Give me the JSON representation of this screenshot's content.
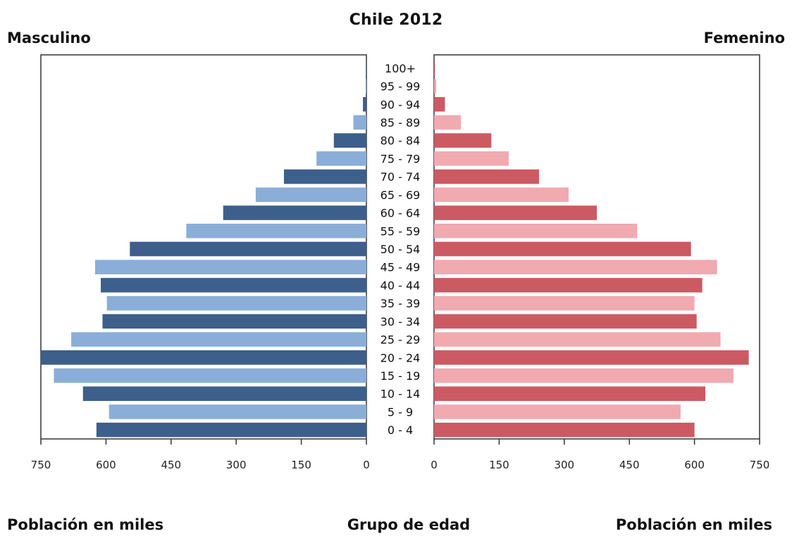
{
  "chart_data": {
    "type": "bar",
    "title": "Chile 2012",
    "left_label": "Masculino",
    "right_label": "Femenino",
    "xlabel_left": "Población en miles",
    "xlabel_center": "Grupo de edad",
    "xlabel_right": "Población en miles",
    "categories": [
      "0 - 4",
      "5 - 9",
      "10 - 14",
      "15 - 19",
      "20 - 24",
      "25 - 29",
      "30 - 34",
      "35 - 39",
      "40 - 44",
      "45 - 49",
      "50 - 54",
      "55 - 59",
      "60 - 64",
      "65 - 69",
      "70 - 74",
      "75 - 79",
      "80 - 84",
      "85 - 89",
      "90 - 94",
      "95 - 99",
      "100+"
    ],
    "series": [
      {
        "name": "Masculino",
        "values": [
          622,
          593,
          653,
          720,
          750,
          680,
          608,
          598,
          612,
          625,
          545,
          415,
          330,
          255,
          190,
          115,
          75,
          30,
          8,
          2,
          1
        ],
        "colors": [
          "#3d5f8c",
          "#8aaed8"
        ]
      },
      {
        "name": "Femenino",
        "values": [
          600,
          568,
          625,
          690,
          725,
          660,
          605,
          600,
          618,
          652,
          592,
          468,
          375,
          310,
          242,
          172,
          132,
          62,
          25,
          5,
          2
        ],
        "colors": [
          "#cc5a62",
          "#f0aab0"
        ]
      }
    ],
    "xlim": [
      0,
      750
    ],
    "ticks": [
      0,
      150,
      300,
      450,
      600,
      750
    ],
    "grid": false
  }
}
